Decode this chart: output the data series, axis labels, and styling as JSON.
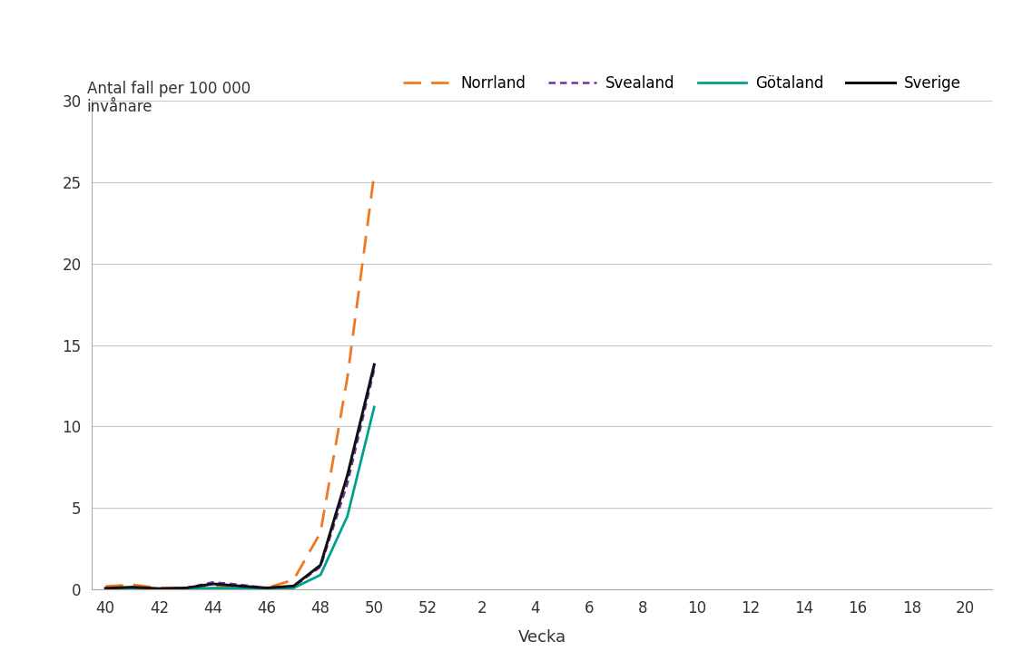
{
  "ylabel": "Antal fall per 100 000\ninvånare",
  "xlabel": "Vecka",
  "ylim": [
    0,
    30
  ],
  "yticks": [
    0,
    5,
    10,
    15,
    20,
    25,
    30
  ],
  "x_labels": [
    "40",
    "42",
    "44",
    "46",
    "48",
    "50",
    "52",
    "2",
    "4",
    "6",
    "8",
    "10",
    "12",
    "14",
    "16",
    "18",
    "20"
  ],
  "x_tick_positions": [
    40,
    42,
    44,
    46,
    48,
    50,
    52,
    54,
    56,
    58,
    60,
    62,
    64,
    66,
    68,
    70,
    72
  ],
  "xlim": [
    39.5,
    73
  ],
  "background_color": "#ffffff",
  "plot_bg": "#ffffff",
  "grid_color": "#c8c8c8",
  "series": [
    {
      "name": "Norrland",
      "color": "#f07820",
      "linestyle": "--",
      "linewidth": 2.0,
      "dashes": [
        7,
        4
      ],
      "data_x": [
        40,
        41,
        42,
        43,
        44,
        45,
        46,
        47,
        48,
        49,
        50
      ],
      "data_y": [
        0.2,
        0.3,
        0.1,
        0.08,
        0.22,
        0.15,
        0.1,
        0.6,
        3.5,
        13.0,
        25.5
      ]
    },
    {
      "name": "Svealand",
      "color": "#7030a0",
      "linestyle": "--",
      "linewidth": 1.8,
      "dashes": [
        3,
        2,
        3,
        2
      ],
      "data_x": [
        40,
        41,
        42,
        43,
        44,
        45,
        46,
        47,
        48,
        49,
        50
      ],
      "data_y": [
        0.05,
        0.1,
        0.05,
        0.1,
        0.45,
        0.3,
        0.1,
        0.18,
        1.4,
        6.5,
        13.5
      ]
    },
    {
      "name": "Götaland",
      "color": "#00a090",
      "linestyle": "-",
      "linewidth": 2.0,
      "dashes": [],
      "data_x": [
        40,
        41,
        42,
        43,
        44,
        45,
        46,
        47,
        48,
        49,
        50
      ],
      "data_y": [
        0.03,
        0.05,
        0.02,
        0.04,
        0.1,
        0.08,
        0.05,
        0.1,
        0.9,
        4.5,
        11.2
      ]
    },
    {
      "name": "Sverige",
      "color": "#111111",
      "linestyle": "-",
      "linewidth": 2.2,
      "dashes": [],
      "data_x": [
        40,
        41,
        42,
        43,
        44,
        45,
        46,
        47,
        48,
        49,
        50
      ],
      "data_y": [
        0.08,
        0.15,
        0.06,
        0.1,
        0.35,
        0.22,
        0.1,
        0.22,
        1.5,
        7.0,
        13.8
      ]
    }
  ]
}
